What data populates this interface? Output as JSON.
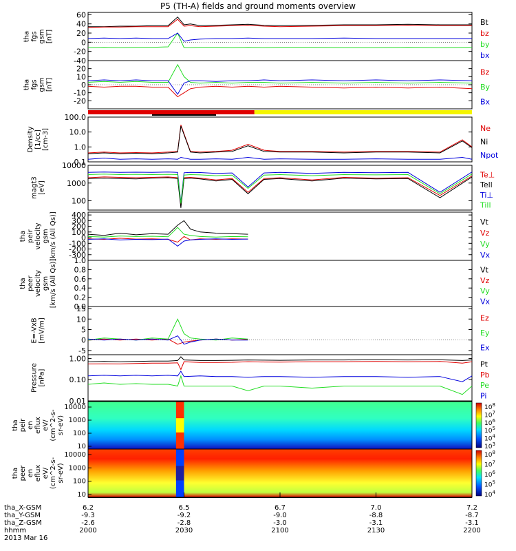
{
  "title": "P5 (TH-A) fields and ground moments overview",
  "footer": {
    "row_labels": [
      "tha_X-GSM",
      "tha_Y-GSM",
      "tha_Z-GSM",
      "hhmm"
    ],
    "date": "2013 Mar 16",
    "columns": [
      {
        "x": "6.2",
        "y": "-9.3",
        "z": "-2.6",
        "t": "2000"
      },
      {
        "x": "6.5",
        "y": "-9.2",
        "z": "-2.8",
        "t": "2030"
      },
      {
        "x": "6.7",
        "y": "-9.0",
        "z": "-3.0",
        "t": "2100"
      },
      {
        "x": "7.0",
        "y": "-8.8",
        "z": "-3.1",
        "t": "2130"
      },
      {
        "x": "7.2",
        "y": "-8.7",
        "z": "-3.1",
        "t": "2200"
      }
    ]
  },
  "colors": {
    "black": "#000000",
    "red": "#e00000",
    "green": "#22dd22",
    "blue": "#0000dd",
    "yellow": "#f5f500"
  },
  "chart_data": [
    {
      "type": "line",
      "id": "fgs_dsl",
      "ylabel": [
        "tha",
        "fgs",
        "gsm",
        "[nT]"
      ],
      "ylim": [
        -40,
        65
      ],
      "ticks": [
        {
          "v": 60,
          "l": "60"
        },
        {
          "v": 40,
          "l": "40"
        },
        {
          "v": 20,
          "l": "20"
        },
        {
          "v": 0,
          "l": "0"
        },
        {
          "v": -20,
          "l": "-20"
        },
        {
          "v": -40,
          "l": "-40"
        }
      ],
      "x": [
        0,
        5,
        10,
        15,
        20,
        25,
        28,
        30,
        32,
        35,
        40,
        45,
        50,
        55,
        60,
        70,
        80,
        90,
        100,
        110,
        120
      ],
      "series": [
        {
          "name": "Bt",
          "color": "black",
          "values": [
            34,
            34,
            35,
            35,
            36,
            36,
            55,
            38,
            40,
            36,
            37,
            38,
            39,
            37,
            36,
            37,
            38,
            38,
            39,
            38,
            38
          ]
        },
        {
          "name": "bz",
          "color": "red",
          "values": [
            32,
            33,
            33,
            34,
            34,
            34,
            50,
            35,
            36,
            34,
            35,
            36,
            37,
            35,
            34,
            35,
            36,
            36,
            37,
            36,
            36
          ]
        },
        {
          "name": "by",
          "color": "green",
          "values": [
            -12,
            -11,
            -12,
            -11,
            -11,
            -10,
            20,
            -12,
            -12,
            -11,
            -11,
            -12,
            -11,
            -12,
            -11,
            -11,
            -12,
            -12,
            -11,
            -12,
            -11
          ]
        },
        {
          "name": "bx",
          "color": "blue",
          "values": [
            8,
            9,
            8,
            9,
            8,
            8,
            20,
            2,
            5,
            7,
            8,
            8,
            9,
            8,
            8,
            8,
            9,
            8,
            8,
            8,
            8
          ]
        }
      ]
    },
    {
      "type": "line",
      "id": "fgs_gsm",
      "ylabel": [
        "tha",
        "fgs",
        "gsm",
        "[nT]"
      ],
      "ylim": [
        -30,
        30
      ],
      "ticks": [
        {
          "v": 20,
          "l": "20"
        },
        {
          "v": 10,
          "l": "10"
        },
        {
          "v": 0,
          "l": "0"
        },
        {
          "v": -10,
          "l": "-10"
        },
        {
          "v": -20,
          "l": "-20"
        }
      ],
      "x": [
        0,
        5,
        10,
        15,
        20,
        25,
        28,
        30,
        32,
        35,
        40,
        45,
        50,
        55,
        60,
        70,
        80,
        90,
        100,
        110,
        120
      ],
      "series": [
        {
          "name": "Bz",
          "color": "red",
          "values": [
            -2,
            -3,
            -2,
            -2,
            -3,
            -3,
            -15,
            -10,
            -5,
            -3,
            -2,
            -3,
            -2,
            -3,
            -2,
            -3,
            -4,
            -3,
            -4,
            -3,
            -5
          ]
        },
        {
          "name": "By",
          "color": "green",
          "values": [
            3,
            4,
            3,
            4,
            3,
            3,
            25,
            10,
            3,
            2,
            3,
            2,
            3,
            3,
            2,
            3,
            2,
            3,
            2,
            3,
            2
          ]
        },
        {
          "name": "Bx",
          "color": "blue",
          "values": [
            5,
            6,
            5,
            6,
            5,
            5,
            -12,
            2,
            5,
            5,
            4,
            5,
            5,
            6,
            5,
            6,
            5,
            6,
            5,
            6,
            5
          ]
        }
      ]
    },
    {
      "type": "line",
      "id": "density",
      "ylabel": [
        "Density",
        "[1/cc]",
        "[cm-3]"
      ],
      "log": true,
      "ylim": [
        0.1,
        100
      ],
      "ticks": [
        {
          "v": 100,
          "l": "100.0"
        },
        {
          "v": 10,
          "l": "10.0"
        },
        {
          "v": 1,
          "l": "1.0"
        },
        {
          "v": 0.1,
          "l": "0.1"
        }
      ],
      "x": [
        0,
        5,
        10,
        15,
        20,
        25,
        28,
        29,
        32,
        35,
        40,
        45,
        50,
        55,
        60,
        70,
        80,
        90,
        100,
        110,
        117,
        120
      ],
      "series": [
        {
          "name": "Ne",
          "color": "red",
          "values": [
            0.4,
            0.45,
            0.4,
            0.42,
            0.4,
            0.45,
            0.5,
            30,
            0.5,
            0.45,
            0.5,
            0.6,
            1.5,
            0.6,
            0.5,
            0.5,
            0.45,
            0.5,
            0.5,
            0.45,
            3,
            1
          ]
        },
        {
          "name": "Ni",
          "color": "black",
          "values": [
            0.35,
            0.4,
            0.35,
            0.38,
            0.35,
            0.4,
            0.45,
            25,
            0.45,
            0.4,
            0.45,
            0.5,
            1.2,
            0.5,
            0.45,
            0.45,
            0.4,
            0.45,
            0.45,
            0.4,
            2.5,
            0.9
          ]
        },
        {
          "name": "Npot",
          "color": "blue",
          "values": [
            0.15,
            0.18,
            0.15,
            0.16,
            0.15,
            0.16,
            0.15,
            0.2,
            0.15,
            0.15,
            0.16,
            0.15,
            0.2,
            0.15,
            0.16,
            0.15,
            0.15,
            0.16,
            0.15,
            0.15,
            0.2,
            0.15
          ]
        }
      ]
    },
    {
      "type": "line",
      "id": "temperature",
      "ylabel": [
        "magt3",
        "[eV]"
      ],
      "log": true,
      "ylim": [
        30,
        10000
      ],
      "ticks": [
        {
          "v": 10000,
          "l": "10000"
        },
        {
          "v": 1000,
          "l": "1000"
        },
        {
          "v": 100,
          "l": "100"
        }
      ],
      "x": [
        0,
        5,
        10,
        15,
        20,
        25,
        28,
        29,
        30,
        32,
        35,
        40,
        45,
        50,
        55,
        60,
        70,
        80,
        90,
        100,
        110,
        120
      ],
      "series": [
        {
          "name": "Te⊥",
          "color": "red",
          "values": [
            2000,
            2200,
            2100,
            2000,
            2100,
            2200,
            2000,
            60,
            2000,
            2100,
            1900,
            1500,
            1800,
            300,
            1800,
            2000,
            1500,
            2100,
            1900,
            2000,
            200,
            2500
          ]
        },
        {
          "name": "Tell",
          "color": "black",
          "values": [
            1800,
            1900,
            1800,
            1700,
            1900,
            2000,
            1800,
            40,
            1800,
            1900,
            1700,
            1300,
            1600,
            250,
            1600,
            1800,
            1300,
            1900,
            1700,
            1800,
            150,
            2200
          ]
        },
        {
          "name": "Ti⊥",
          "color": "blue",
          "values": [
            4000,
            4200,
            4000,
            4100,
            4000,
            4200,
            4000,
            80,
            3800,
            4000,
            3900,
            3500,
            3700,
            600,
            3700,
            4000,
            3500,
            4000,
            3800,
            4000,
            300,
            4200
          ]
        },
        {
          "name": "Till",
          "color": "green",
          "values": [
            3000,
            3200,
            3000,
            3100,
            3000,
            3100,
            3000,
            70,
            2800,
            3000,
            2900,
            2600,
            2800,
            500,
            2800,
            3000,
            2600,
            3000,
            2900,
            3000,
            250,
            3200
          ]
        }
      ]
    },
    {
      "type": "line",
      "id": "peir_velocity",
      "ylabel": [
        "tha",
        "peir",
        "velocity",
        "gsm",
        "[km/s (All Qs)]"
      ],
      "ylim": [
        -400,
        450
      ],
      "ticks": [
        {
          "v": 400,
          "l": "400"
        },
        {
          "v": 300,
          "l": "300"
        },
        {
          "v": 200,
          "l": "200"
        },
        {
          "v": 100,
          "l": "100"
        },
        {
          "v": 0,
          "l": "0"
        },
        {
          "v": -100,
          "l": "-100"
        },
        {
          "v": -200,
          "l": "-200"
        },
        {
          "v": -300,
          "l": "-300"
        }
      ],
      "x": [
        0,
        5,
        10,
        15,
        20,
        25,
        28,
        30,
        32,
        35,
        40,
        45,
        50
      ],
      "series": [
        {
          "name": "Vt",
          "color": "black",
          "values": [
            60,
            40,
            80,
            50,
            70,
            60,
            220,
            300,
            150,
            100,
            80,
            70,
            60
          ]
        },
        {
          "name": "Vz",
          "color": "red",
          "values": [
            -20,
            -30,
            -10,
            -25,
            -20,
            -30,
            -80,
            20,
            -40,
            -20,
            -30,
            -20,
            -25
          ]
        },
        {
          "name": "Vy",
          "color": "green",
          "values": [
            20,
            10,
            30,
            20,
            25,
            15,
            180,
            60,
            40,
            20,
            10,
            20,
            15
          ]
        },
        {
          "name": "Vx",
          "color": "blue",
          "values": [
            -30,
            -20,
            -40,
            -30,
            -35,
            -25,
            -150,
            -60,
            -40,
            -30,
            -20,
            -30,
            -25
          ]
        }
      ]
    },
    {
      "type": "line",
      "id": "peer_velocity",
      "ylabel": [
        "tha",
        "peer",
        "velocity",
        "gsm",
        "[km/s (All Qs)]"
      ],
      "ylim": [
        0,
        1
      ],
      "ticks": [
        {
          "v": 1.0,
          "l": "1.0"
        },
        {
          "v": 0.8,
          "l": "0.8"
        },
        {
          "v": 0.6,
          "l": "0.6"
        },
        {
          "v": 0.4,
          "l": "0.4"
        },
        {
          "v": 0.2,
          "l": "0.2"
        },
        {
          "v": 0,
          "l": "0.0"
        }
      ],
      "x": [],
      "series": [
        {
          "name": "Vt",
          "color": "black",
          "values": []
        },
        {
          "name": "Vz",
          "color": "red",
          "values": []
        },
        {
          "name": "Vy",
          "color": "green",
          "values": []
        },
        {
          "name": "Vx",
          "color": "blue",
          "values": []
        }
      ]
    },
    {
      "type": "line",
      "id": "efield",
      "ylabel": [
        "E=-VxB",
        "[mV/m]"
      ],
      "ylim": [
        -7,
        16
      ],
      "ticks": [
        {
          "v": 15,
          "l": "15"
        },
        {
          "v": 10,
          "l": "10"
        },
        {
          "v": 5,
          "l": "5"
        },
        {
          "v": 0,
          "l": "0"
        },
        {
          "v": -5,
          "l": "-5"
        }
      ],
      "x": [
        0,
        5,
        10,
        15,
        20,
        25,
        28,
        30,
        32,
        35,
        40,
        45,
        50
      ],
      "series": [
        {
          "name": "Ez",
          "color": "red",
          "values": [
            0,
            0.5,
            0,
            0.5,
            0,
            0.5,
            -2,
            -1,
            -0.5,
            0,
            0.5,
            0,
            0.3
          ]
        },
        {
          "name": "Ey",
          "color": "green",
          "values": [
            0,
            1,
            0.5,
            0,
            1,
            0.5,
            10,
            3,
            1,
            0.5,
            0,
            1,
            0.5
          ]
        },
        {
          "name": "Ex",
          "color": "blue",
          "values": [
            0.5,
            0,
            0.5,
            0,
            0.5,
            0,
            2,
            -2,
            -1,
            0,
            0.5,
            0,
            0
          ]
        }
      ]
    },
    {
      "type": "line",
      "id": "pressure",
      "ylabel": [
        "Pressure",
        "[nPa]"
      ],
      "log": true,
      "ylim": [
        0.01,
        1.5
      ],
      "ticks": [
        {
          "v": 1,
          "l": "1.00"
        },
        {
          "v": 0.1,
          "l": "0.10"
        },
        {
          "v": 0.01,
          "l": "0.01"
        }
      ],
      "x": [
        0,
        5,
        10,
        15,
        20,
        25,
        28,
        29,
        30,
        35,
        40,
        45,
        50,
        55,
        60,
        70,
        80,
        90,
        100,
        110,
        117,
        120
      ],
      "series": [
        {
          "name": "Pt",
          "color": "black",
          "values": [
            0.7,
            0.72,
            0.7,
            0.72,
            0.75,
            0.75,
            0.8,
            1.2,
            0.85,
            0.8,
            0.8,
            0.82,
            0.85,
            0.83,
            0.82,
            0.85,
            0.85,
            0.86,
            0.85,
            0.86,
            0.8,
            0.85
          ]
        },
        {
          "name": "Pb",
          "color": "red",
          "values": [
            0.55,
            0.56,
            0.55,
            0.58,
            0.6,
            0.6,
            0.62,
            0.3,
            0.7,
            0.65,
            0.65,
            0.66,
            0.7,
            0.68,
            0.67,
            0.7,
            0.7,
            0.72,
            0.7,
            0.72,
            0.6,
            0.7
          ]
        },
        {
          "name": "Pe",
          "color": "green",
          "values": [
            0.06,
            0.07,
            0.06,
            0.065,
            0.06,
            0.06,
            0.05,
            0.15,
            0.05,
            0.05,
            0.05,
            0.05,
            0.03,
            0.05,
            0.05,
            0.04,
            0.05,
            0.05,
            0.05,
            0.05,
            0.02,
            0.05
          ]
        },
        {
          "name": "Pi",
          "color": "blue",
          "values": [
            0.15,
            0.16,
            0.15,
            0.16,
            0.15,
            0.16,
            0.15,
            0.25,
            0.14,
            0.15,
            0.14,
            0.14,
            0.13,
            0.14,
            0.14,
            0.13,
            0.14,
            0.14,
            0.13,
            0.14,
            0.08,
            0.15
          ]
        }
      ]
    },
    {
      "type": "heatmap",
      "id": "peir_spec",
      "ylabel": [
        "tha",
        "peir",
        "en",
        "eflux",
        "eV/",
        "(cm^2-s-",
        "sr-eV)"
      ],
      "ticks": [
        {
          "l": "10000"
        },
        {
          "l": "1000"
        },
        {
          "l": "100"
        },
        {
          "l": "10"
        }
      ],
      "colorbar": [
        "10^8",
        "10^7",
        "10^6",
        "10^5",
        "10^4",
        "10^3"
      ]
    },
    {
      "type": "heatmap",
      "id": "peer_spec",
      "ylabel": [
        "tha",
        "peer",
        "en",
        "eflux",
        "eV/",
        "(cm^2-s-",
        "sr-eV)"
      ],
      "ticks": [
        {
          "l": "10000"
        },
        {
          "l": "1000"
        },
        {
          "l": "100"
        },
        {
          "l": "10"
        }
      ],
      "colorbar": [
        "10^8",
        "10^7",
        "10^6",
        "10^5",
        "10^4"
      ]
    }
  ]
}
